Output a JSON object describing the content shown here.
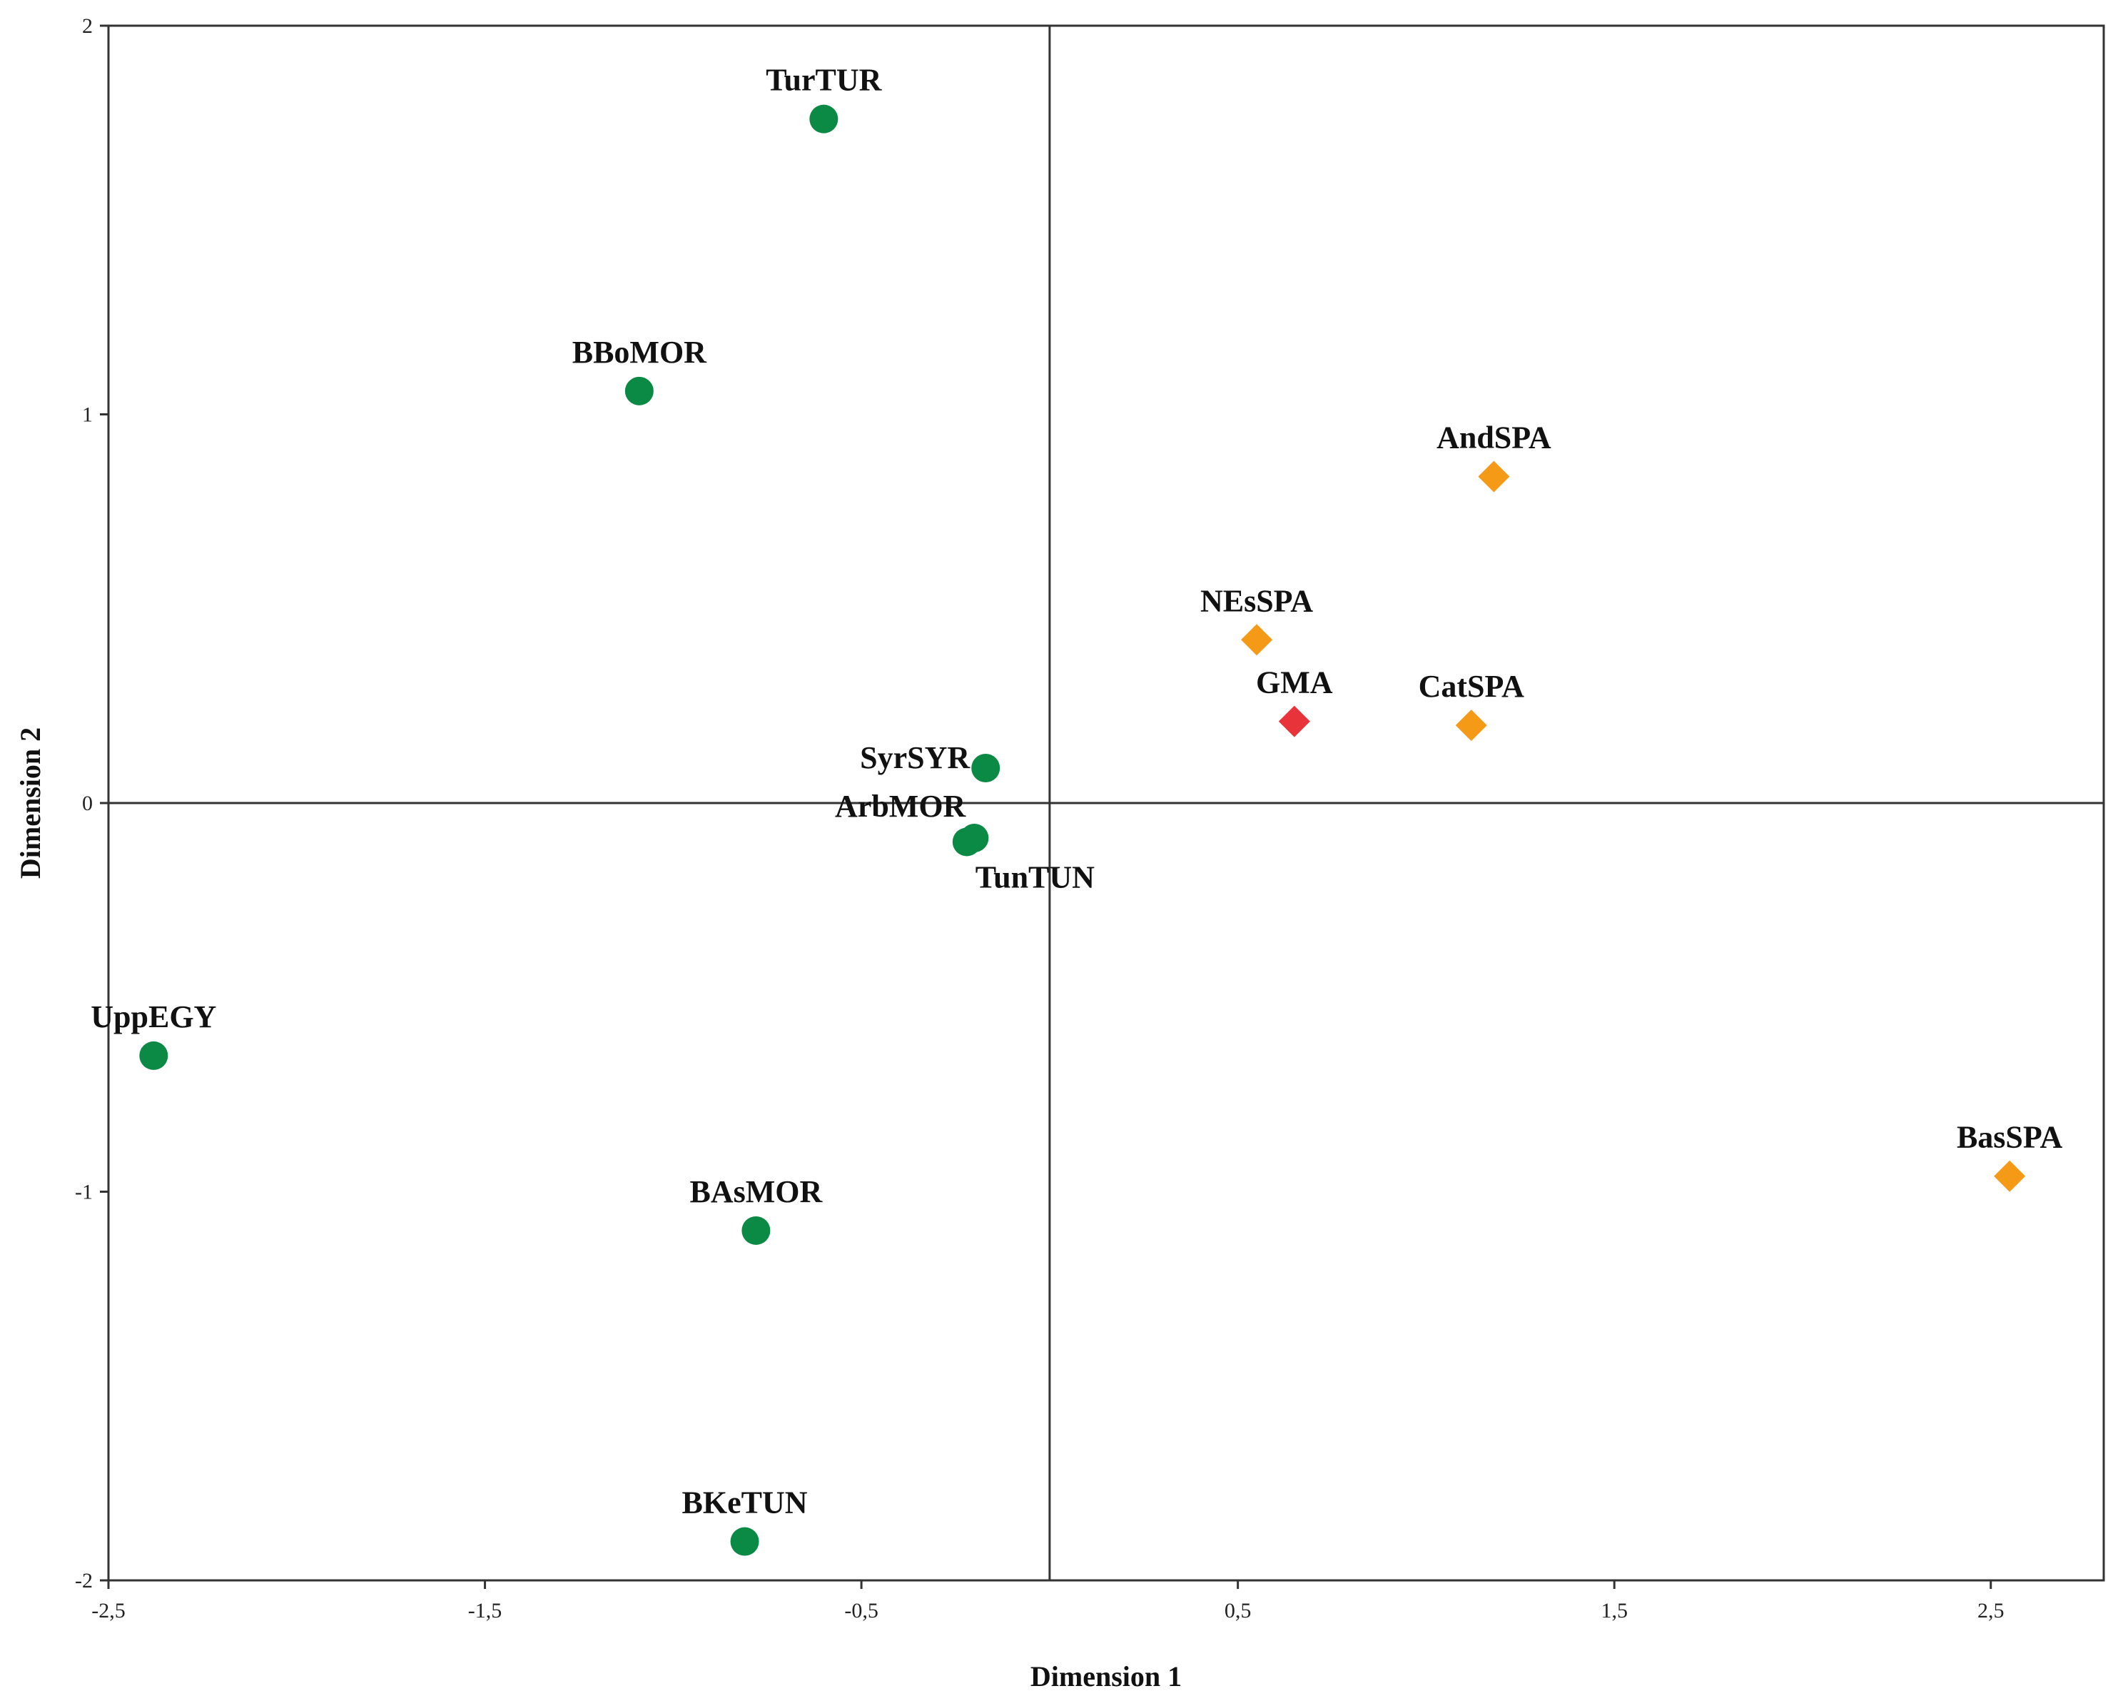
{
  "chart_data": {
    "type": "scatter",
    "title": "",
    "xlabel": "Dimension 1",
    "ylabel": "Dimension 2",
    "xlim": [
      -2.5,
      2.8
    ],
    "ylim": [
      -2.0,
      2.0
    ],
    "xticks": [
      {
        "value": -2.5,
        "label": "-2,5"
      },
      {
        "value": -1.5,
        "label": "-1,5"
      },
      {
        "value": -0.5,
        "label": "-0,5"
      },
      {
        "value": 0.5,
        "label": "0,5"
      },
      {
        "value": 1.5,
        "label": "1,5"
      },
      {
        "value": 2.5,
        "label": "2,5"
      }
    ],
    "yticks": [
      {
        "value": 2,
        "label": "2"
      },
      {
        "value": 1,
        "label": "1"
      },
      {
        "value": 0,
        "label": "0"
      },
      {
        "value": -1,
        "label": "-1"
      },
      {
        "value": -2,
        "label": "-2"
      }
    ],
    "reference_lines": {
      "x": 0,
      "y": 0
    },
    "grid": false,
    "colors": {
      "north_africa_middle_east": "#0b8a45",
      "spain": "#f59a16",
      "gma": "#e8333b",
      "frame": "#333333"
    },
    "points": [
      {
        "label": "TurTUR",
        "x": -0.6,
        "y": 1.76,
        "marker": "circle",
        "color_key": "north_africa_middle_east",
        "label_pos": "above"
      },
      {
        "label": "BBoMOR",
        "x": -1.09,
        "y": 1.06,
        "marker": "circle",
        "color_key": "north_africa_middle_east",
        "label_pos": "above"
      },
      {
        "label": "SyrSYR",
        "x": -0.17,
        "y": 0.09,
        "marker": "circle",
        "color_key": "north_africa_middle_east",
        "label_pos": "left"
      },
      {
        "label": "ArbMOR",
        "x": -0.2,
        "y": -0.09,
        "marker": "circle",
        "color_key": "north_africa_middle_east",
        "label_pos": "above-left"
      },
      {
        "label": "TunTUN",
        "x": -0.22,
        "y": -0.1,
        "marker": "circle",
        "color_key": "north_africa_middle_east",
        "label_pos": "below-right"
      },
      {
        "label": "UppEGY",
        "x": -2.38,
        "y": -0.65,
        "marker": "circle",
        "color_key": "north_africa_middle_east",
        "label_pos": "above"
      },
      {
        "label": "BAsMOR",
        "x": -0.78,
        "y": -1.1,
        "marker": "circle",
        "color_key": "north_africa_middle_east",
        "label_pos": "above"
      },
      {
        "label": "BKeTUN",
        "x": -0.81,
        "y": -1.9,
        "marker": "circle",
        "color_key": "north_africa_middle_east",
        "label_pos": "above"
      },
      {
        "label": "AndSPA",
        "x": 1.18,
        "y": 0.84,
        "marker": "diamond",
        "color_key": "spain",
        "label_pos": "above"
      },
      {
        "label": "NEsSPA",
        "x": 0.55,
        "y": 0.42,
        "marker": "diamond",
        "color_key": "spain",
        "label_pos": "above"
      },
      {
        "label": "GMA",
        "x": 0.65,
        "y": 0.21,
        "marker": "diamond",
        "color_key": "gma",
        "label_pos": "above"
      },
      {
        "label": "CatSPA",
        "x": 1.12,
        "y": 0.2,
        "marker": "diamond",
        "color_key": "spain",
        "label_pos": "above"
      },
      {
        "label": "BasSPA",
        "x": 2.55,
        "y": -0.96,
        "marker": "diamond",
        "color_key": "spain",
        "label_pos": "above"
      }
    ]
  }
}
